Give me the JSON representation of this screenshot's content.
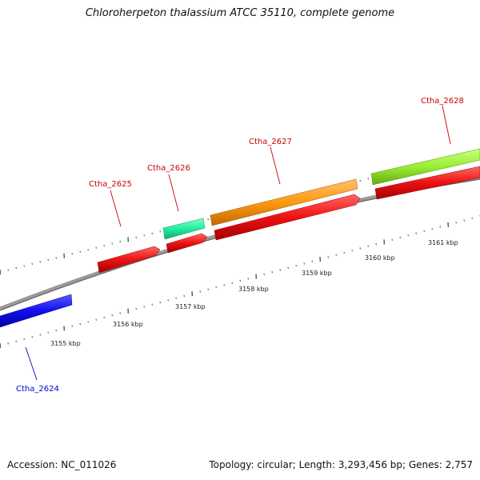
{
  "title": "Chloroherpeton thalassium ATCC 35110, complete genome",
  "footer": {
    "accession": "Accession: NC_011026",
    "summary": "Topology: circular; Length: 3,293,456 bp; Genes: 2,757"
  },
  "axis_labels": [
    "3155 kbp",
    "3156 kbp",
    "3157 kbp",
    "3158 kbp",
    "3159 kbp",
    "3160 kbp",
    "3161 kbp"
  ],
  "genes": [
    {
      "id": "ctha-2624",
      "label": "Ctha_2624",
      "color": "#0000cc"
    },
    {
      "id": "ctha-2625",
      "label": "Ctha_2625",
      "color": "#cc0000"
    },
    {
      "id": "ctha-2626",
      "label": "Ctha_2626",
      "color": "#cc0000"
    },
    {
      "id": "ctha-2627",
      "label": "Ctha_2627",
      "color": "#cc0000"
    },
    {
      "id": "ctha-2628",
      "label": "Ctha_2628",
      "color": "#cc0000"
    }
  ],
  "colors": {
    "blue_cds": "#1010ee",
    "red_cds": "#ee1111",
    "teal_cds": "#22eea0",
    "orange_cds": "#ff9910",
    "lime_cds": "#99ee33",
    "backbone": "#888888",
    "ticks": "#227722"
  }
}
